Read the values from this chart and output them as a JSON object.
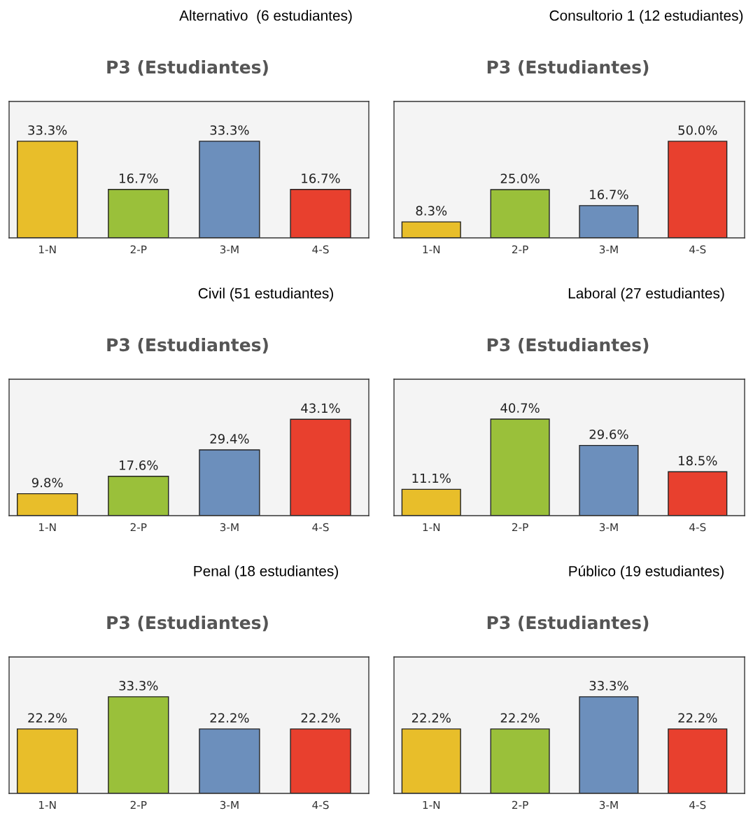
{
  "chart_data": [
    {
      "type": "bar",
      "title": "Alternativo  (6 estudiantes)",
      "subtitle": "P3 (Estudiantes)",
      "categories": [
        "1-N",
        "2-P",
        "3-M",
        "4-S"
      ],
      "values": [
        33.3,
        16.7,
        33.3,
        16.7
      ],
      "value_labels": [
        "33.3%",
        "16.7%",
        "33.3%",
        "16.7%"
      ],
      "colors": [
        "#e8be2a",
        "#9ac03a",
        "#6c8fbc",
        "#e8402e"
      ],
      "ylim": [
        0,
        47
      ],
      "grid": false,
      "legend": false
    },
    {
      "type": "bar",
      "title": "Consultorio 1 (12 estudiantes)",
      "subtitle": "P3 (Estudiantes)",
      "categories": [
        "1-N",
        "2-P",
        "3-M",
        "4-S"
      ],
      "values": [
        8.3,
        25.0,
        16.7,
        50.0
      ],
      "value_labels": [
        "8.3%",
        "25.0%",
        "16.7%",
        "50.0%"
      ],
      "colors": [
        "#e8be2a",
        "#9ac03a",
        "#6c8fbc",
        "#e8402e"
      ],
      "ylim": [
        0,
        70.6
      ],
      "grid": false,
      "legend": false
    },
    {
      "type": "bar",
      "title": "Civil (51 estudiantes)",
      "subtitle": "P3 (Estudiantes)",
      "categories": [
        "1-N",
        "2-P",
        "3-M",
        "4-S"
      ],
      "values": [
        9.8,
        17.6,
        29.4,
        43.1
      ],
      "value_labels": [
        "9.8%",
        "17.6%",
        "29.4%",
        "43.1%"
      ],
      "colors": [
        "#e8be2a",
        "#9ac03a",
        "#6c8fbc",
        "#e8402e"
      ],
      "ylim": [
        0,
        61
      ],
      "grid": false,
      "legend": false
    },
    {
      "type": "bar",
      "title": "Laboral (27 estudiantes)",
      "subtitle": "P3 (Estudiantes)",
      "categories": [
        "1-N",
        "2-P",
        "3-M",
        "4-S"
      ],
      "values": [
        11.1,
        40.7,
        29.6,
        18.5
      ],
      "value_labels": [
        "11.1%",
        "40.7%",
        "29.6%",
        "18.5%"
      ],
      "colors": [
        "#e8be2a",
        "#9ac03a",
        "#6c8fbc",
        "#e8402e"
      ],
      "ylim": [
        0,
        57.5
      ],
      "grid": false,
      "legend": false
    },
    {
      "type": "bar",
      "title": "Penal (18 estudiantes)",
      "subtitle": "P3 (Estudiantes)",
      "categories": [
        "1-N",
        "2-P",
        "3-M",
        "4-S"
      ],
      "values": [
        22.2,
        33.3,
        22.2,
        22.2
      ],
      "value_labels": [
        "22.2%",
        "33.3%",
        "22.2%",
        "22.2%"
      ],
      "colors": [
        "#e8be2a",
        "#9ac03a",
        "#6c8fbc",
        "#e8402e"
      ],
      "ylim": [
        0,
        47
      ],
      "grid": false,
      "legend": false
    },
    {
      "type": "bar",
      "title": "Público (19 estudiantes)",
      "subtitle": "P3 (Estudiantes)",
      "categories": [
        "1-N",
        "2-P",
        "3-M",
        "4-S"
      ],
      "values": [
        22.2,
        22.2,
        33.3,
        22.2
      ],
      "value_labels": [
        "22.2%",
        "22.2%",
        "33.3%",
        "22.2%"
      ],
      "colors": [
        "#e8be2a",
        "#9ac03a",
        "#6c8fbc",
        "#e8402e"
      ],
      "ylim": [
        0,
        47
      ],
      "grid": false,
      "legend": false
    }
  ]
}
